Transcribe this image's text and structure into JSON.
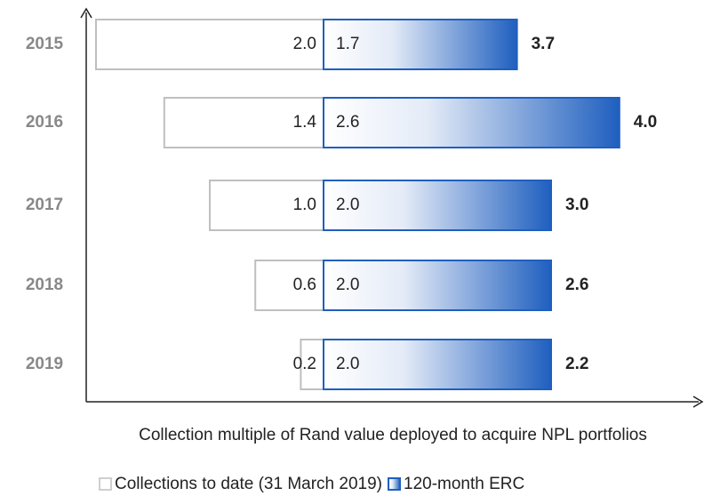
{
  "chart_data": {
    "type": "bar",
    "categories": [
      "2015",
      "2016",
      "2017",
      "2018",
      "2019"
    ],
    "series": [
      {
        "name": "Collections to date (31 March 2019)",
        "color": "#bfbfbf",
        "values": [
          2.0,
          1.4,
          1.0,
          0.6,
          0.2
        ],
        "value_labels": [
          "2.0",
          "1.4",
          "1.0",
          "0.6",
          "0.2"
        ]
      },
      {
        "name": "120-month ERC",
        "color": "#1f5fbf",
        "values": [
          1.7,
          2.6,
          2.0,
          2.0,
          2.0
        ],
        "value_labels": [
          "1.7",
          "2.6",
          "2.0",
          "2.0",
          "2.0"
        ]
      }
    ],
    "totals": [
      3.7,
      4.0,
      3.0,
      2.6,
      2.2
    ],
    "total_labels": [
      "3.7",
      "4.0",
      "3.0",
      "2.6",
      "2.2"
    ],
    "xlabel": "Collection multiple of Rand value deployed to acquire NPL portfolios"
  }
}
